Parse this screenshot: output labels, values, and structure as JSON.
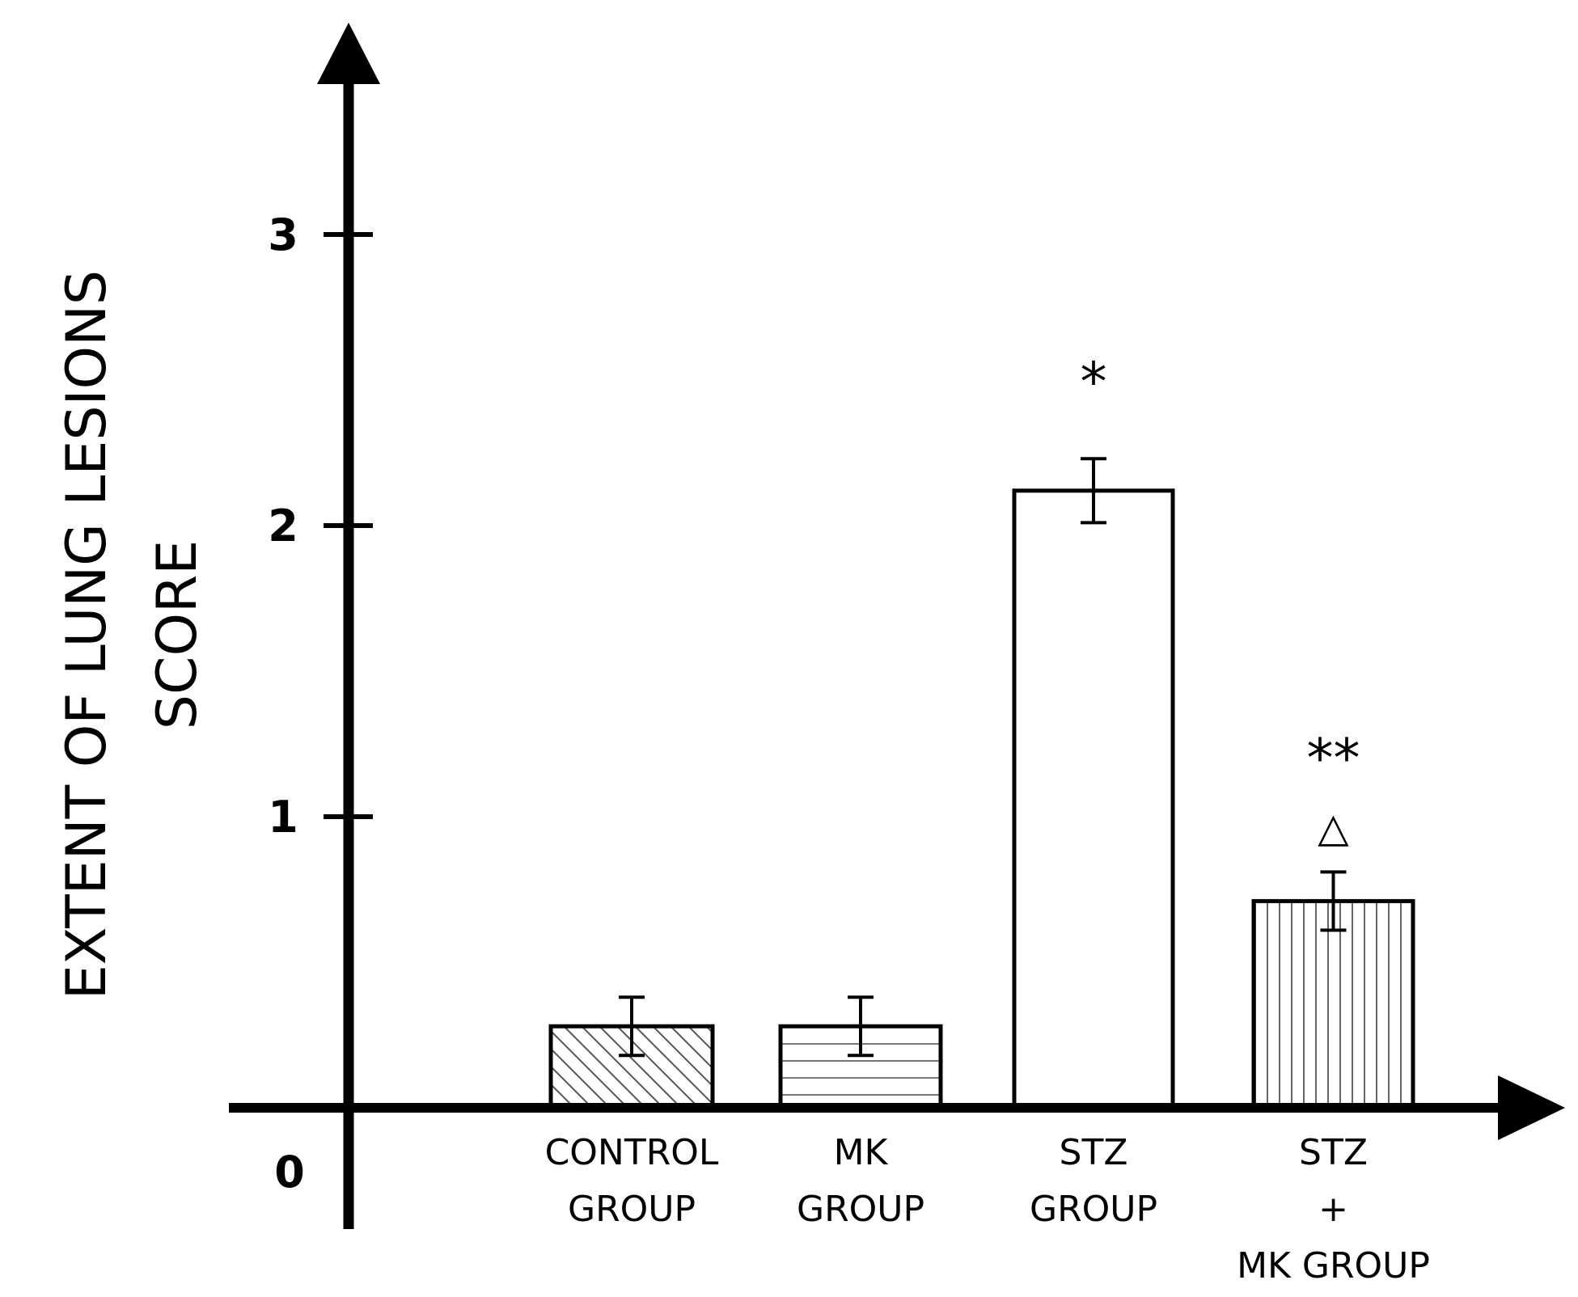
{
  "chart_data": {
    "type": "bar",
    "title": "",
    "xlabel": "",
    "ylabel": [
      "EXTENT OF LUNG LESIONS",
      "SCORE"
    ],
    "ylim": [
      0,
      3.8
    ],
    "yticks": [
      1,
      2,
      3
    ],
    "zero_label": "0",
    "grid": false,
    "categories": [
      [
        "CONTROL",
        "GROUP"
      ],
      [
        "MK",
        "GROUP"
      ],
      [
        "STZ",
        "GROUP"
      ],
      [
        "STZ",
        "+",
        "MK GROUP"
      ]
    ],
    "values": [
      0.28,
      0.28,
      2.12,
      0.71
    ],
    "errors": [
      0.1,
      0.1,
      0.11,
      0.1
    ],
    "patterns": [
      "diagonal",
      "horizontal",
      "none",
      "vertical"
    ],
    "annotations": [
      {
        "category_index": 2,
        "lines": [
          "*"
        ]
      },
      {
        "category_index": 3,
        "lines": [
          "**",
          "△"
        ]
      }
    ]
  }
}
